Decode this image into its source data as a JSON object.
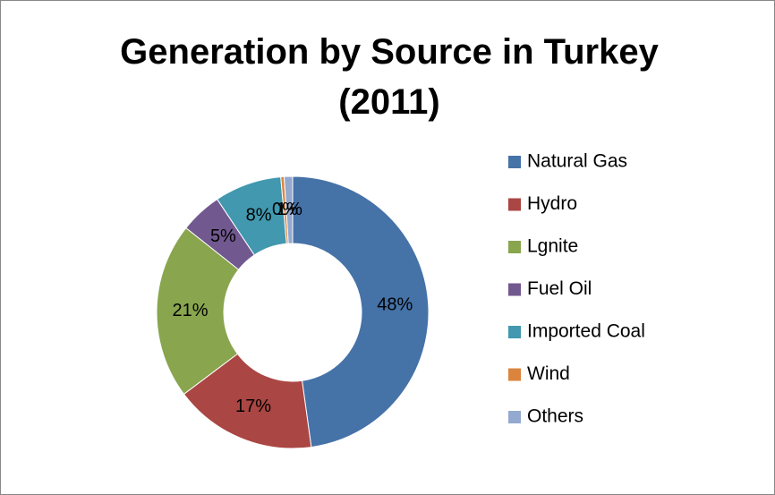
{
  "chart_data": {
    "type": "donut",
    "title": "Generation by Source in Turkey (2011)",
    "categories": [
      "Natural Gas",
      "Hydro",
      "Lgnite",
      "Fuel Oil",
      "Imported Coal",
      "Wind",
      "Others"
    ],
    "values": [
      48,
      17,
      21,
      5,
      8,
      0.4,
      1
    ],
    "value_labels": [
      "48%",
      "17%",
      "21%",
      "5%",
      "8%",
      "0%",
      "1%"
    ],
    "colors": [
      "#4572a7",
      "#aa4643",
      "#89a54e",
      "#71588f",
      "#4198af",
      "#db843d",
      "#93a9cf"
    ],
    "legend": "right"
  }
}
